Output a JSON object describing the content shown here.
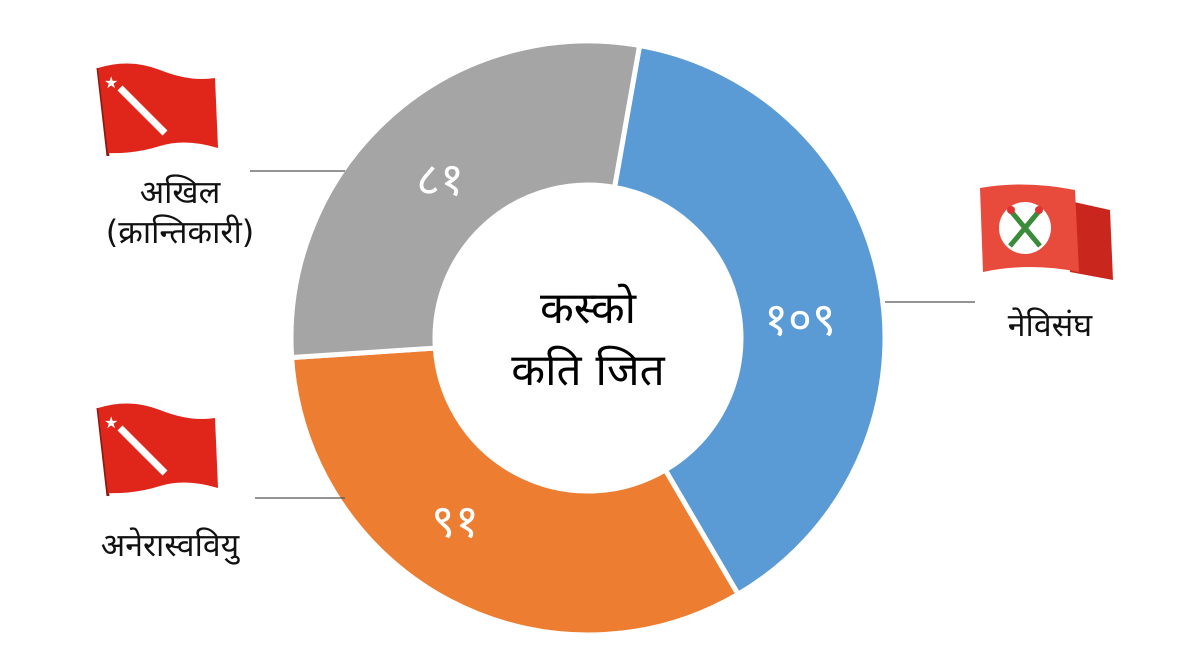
{
  "chart_data": {
    "type": "pie",
    "variant": "donut",
    "title": "कस्को कति जित",
    "title_lines": [
      "कस्को",
      "कति जित"
    ],
    "slices": [
      {
        "label": "नेविसंघ",
        "value": 109,
        "value_label": "१०९",
        "color": "#5b9bd5"
      },
      {
        "label": "अनेरास्ववियु",
        "value": 91,
        "value_label": "९१",
        "color": "#ed7d31"
      },
      {
        "label": "अखिल (क्रान्तिकारी)",
        "label_lines": [
          "अखिल",
          "(क्रान्तिकारी)"
        ],
        "value": 81,
        "value_label": "८१",
        "color": "#a5a5a5"
      }
    ],
    "legend": "callouts-with-flags"
  }
}
